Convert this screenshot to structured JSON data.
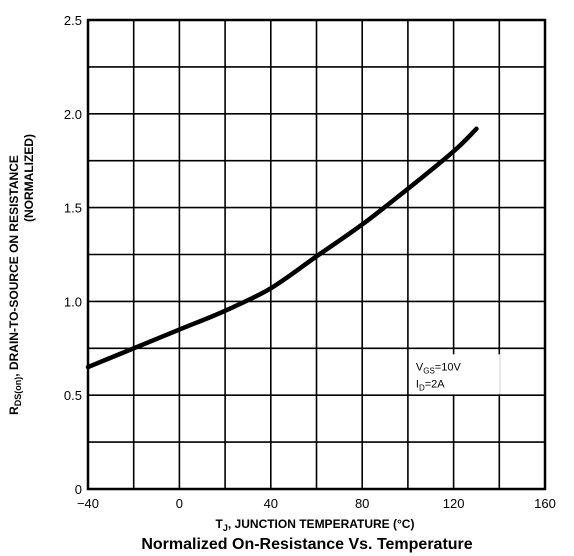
{
  "chart_data": {
    "type": "line",
    "title": "Normalized On-Resistance Vs. Temperature",
    "xlabel": "T₁, JUNCTION TEMPERATURE (°C)",
    "xlabel_parts": {
      "main": "T",
      "sub": "J",
      "rest": ", JUNCTION TEMPERATURE (°C)"
    },
    "ylabel_line1": "R₂₂₂₂₂₂, DRAIN-TO-SOURCE ON RESISTANCE",
    "ylabel_parts": {
      "main": "R",
      "sub": "DS(on)",
      "rest": ", DRAIN-TO-SOURCE ON RESISTANCE"
    },
    "ylabel_line2": "(NORMALIZED)",
    "xlim": [
      -40,
      160
    ],
    "ylim": [
      0,
      2.5
    ],
    "x_ticks": [
      -40,
      0,
      40,
      80,
      120,
      160
    ],
    "x_tick_labels": [
      "−40",
      "0",
      "40",
      "80",
      "120",
      "160"
    ],
    "y_ticks": [
      0,
      0.5,
      1.0,
      1.5,
      2.0,
      2.5
    ],
    "y_tick_labels": [
      "0",
      "0.5",
      "1.0",
      "1.5",
      "2.0",
      "2.5"
    ],
    "x_grid_step": 20,
    "y_grid_step": 0.25,
    "grid": true,
    "series": [
      {
        "x": [
          -40,
          -20,
          0,
          20,
          40,
          60,
          80,
          100,
          120,
          130
        ],
        "values": [
          0.65,
          0.75,
          0.85,
          0.95,
          1.07,
          1.24,
          1.41,
          1.6,
          1.8,
          1.92
        ]
      }
    ],
    "annotation": {
      "line1": {
        "main": "V",
        "sub": "GS",
        "rest": "=10V"
      },
      "line2": {
        "main": "I",
        "sub": "D",
        "rest": "=2A"
      }
    }
  }
}
